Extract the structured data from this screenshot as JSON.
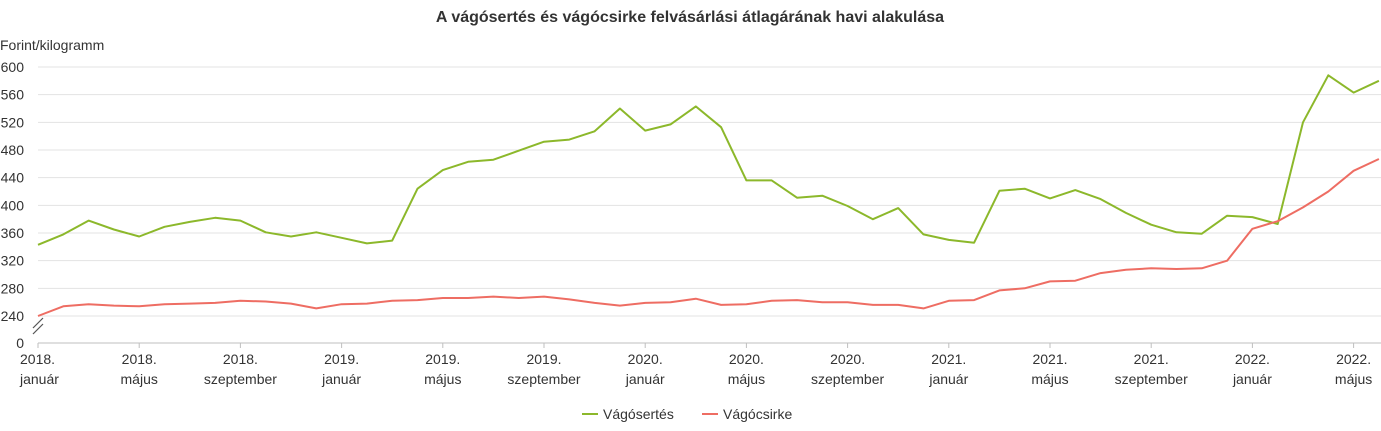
{
  "chart_data": {
    "type": "line",
    "title": "A vágósertés és vágócsirke felvásárlási átlagárának havi alakulása",
    "ylabel": "Forint/kilogramm",
    "ylim": [
      0,
      600
    ],
    "y_break": [
      0,
      240
    ],
    "y_ticks": [
      "0",
      "240",
      "280",
      "320",
      "360",
      "400",
      "440",
      "480",
      "520",
      "560",
      "600"
    ],
    "x_tick_labels": [
      {
        "month_index": 0,
        "year": "2018.",
        "month": "január"
      },
      {
        "month_index": 4,
        "year": "2018.",
        "month": "május"
      },
      {
        "month_index": 8,
        "year": "2018.",
        "month": "szeptember"
      },
      {
        "month_index": 12,
        "year": "2019.",
        "month": "január"
      },
      {
        "month_index": 16,
        "year": "2019.",
        "month": "május"
      },
      {
        "month_index": 20,
        "year": "2019.",
        "month": "szeptember"
      },
      {
        "month_index": 24,
        "year": "2020.",
        "month": "január"
      },
      {
        "month_index": 28,
        "year": "2020.",
        "month": "május"
      },
      {
        "month_index": 32,
        "year": "2020.",
        "month": "szeptember"
      },
      {
        "month_index": 36,
        "year": "2021.",
        "month": "január"
      },
      {
        "month_index": 40,
        "year": "2021.",
        "month": "május"
      },
      {
        "month_index": 44,
        "year": "2021.",
        "month": "szeptember"
      },
      {
        "month_index": 48,
        "year": "2022.",
        "month": "január"
      },
      {
        "month_index": 52,
        "year": "2022.",
        "month": "május"
      }
    ],
    "series": [
      {
        "name": "Vágósertés",
        "color": "#8cb82b",
        "values": [
          343,
          358,
          378,
          365,
          355,
          369,
          376,
          382,
          378,
          361,
          355,
          361,
          353,
          345,
          349,
          424,
          451,
          463,
          466,
          479,
          492,
          495,
          507,
          540,
          508,
          517,
          543,
          513,
          436,
          436,
          411,
          414,
          399,
          380,
          396,
          358,
          350,
          346,
          421,
          424,
          410,
          422,
          409,
          389,
          372,
          361,
          359,
          385,
          383,
          373,
          520,
          588,
          563,
          580
        ]
      },
      {
        "name": "Vágócsirke",
        "color": "#ee6d63",
        "values": [
          240,
          254,
          257,
          255,
          254,
          257,
          258,
          259,
          262,
          261,
          258,
          251,
          257,
          258,
          262,
          263,
          266,
          266,
          268,
          266,
          268,
          264,
          259,
          255,
          259,
          260,
          265,
          256,
          257,
          262,
          263,
          260,
          260,
          256,
          256,
          251,
          262,
          263,
          277,
          280,
          290,
          291,
          302,
          307,
          309,
          308,
          309,
          320,
          366,
          377,
          397,
          420,
          450,
          467
        ]
      }
    ]
  }
}
